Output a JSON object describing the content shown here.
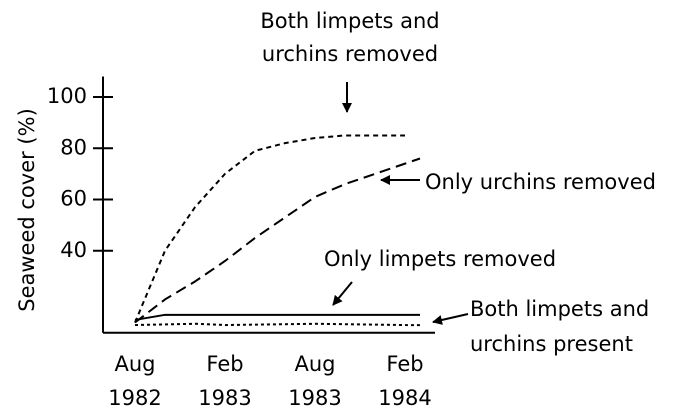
{
  "chart_data": {
    "type": "line",
    "y_label": "Seaweed cover (%)",
    "xlim": [
      "1982-06",
      "1984-04"
    ],
    "ylim": [
      8,
      108
    ],
    "xticks": [
      {
        "value": "1982-08",
        "label": "Aug 1982"
      },
      {
        "value": "1983-02",
        "label": "Feb 1983"
      },
      {
        "value": "1983-08",
        "label": "Aug 1983"
      },
      {
        "value": "1984-02",
        "label": "Feb 1984"
      }
    ],
    "yticks": [
      40,
      60,
      80,
      100
    ],
    "series": [
      {
        "name": "Both limpets and urchins removed",
        "color": "#000000",
        "dash": "short-dash",
        "x": [
          "1982-08",
          "1982-10",
          "1982-12",
          "1983-02",
          "1983-04",
          "1983-06",
          "1983-08",
          "1983-10",
          "1983-12",
          "1984-02"
        ],
        "values": [
          12,
          40,
          57,
          70,
          79,
          82,
          84,
          85,
          85,
          85
        ]
      },
      {
        "name": "Only urchins removed",
        "color": "#000000",
        "dash": "long-dash",
        "x": [
          "1982-08",
          "1982-10",
          "1982-12",
          "1983-02",
          "1983-04",
          "1983-06",
          "1983-08",
          "1983-10",
          "1983-12",
          "1984-02",
          "1984-03"
        ],
        "values": [
          12,
          21,
          28,
          36,
          45,
          53,
          61,
          66,
          70,
          74,
          76
        ]
      },
      {
        "name": "Only limpets removed",
        "color": "#000000",
        "dash": "solid",
        "x": [
          "1982-08",
          "1982-10",
          "1982-12",
          "1983-02",
          "1983-08",
          "1984-02",
          "1984-03"
        ],
        "values": [
          13,
          15,
          15,
          15,
          15,
          15,
          15
        ]
      },
      {
        "name": "Both limpets and urchins present",
        "color": "#000000",
        "dash": "dotted",
        "x": [
          "1982-08",
          "1982-12",
          "1983-02",
          "1983-08",
          "1984-02",
          "1984-03"
        ],
        "values": [
          11,
          11.5,
          11,
          11.5,
          11,
          11
        ]
      }
    ],
    "annotations": [
      {
        "lines": [
          "Both limpets and",
          "urchins removed"
        ]
      },
      {
        "lines": [
          "Only urchins removed"
        ]
      },
      {
        "lines": [
          "Only limpets removed"
        ]
      },
      {
        "lines": [
          "Both limpets and",
          "urchins present"
        ]
      }
    ]
  }
}
